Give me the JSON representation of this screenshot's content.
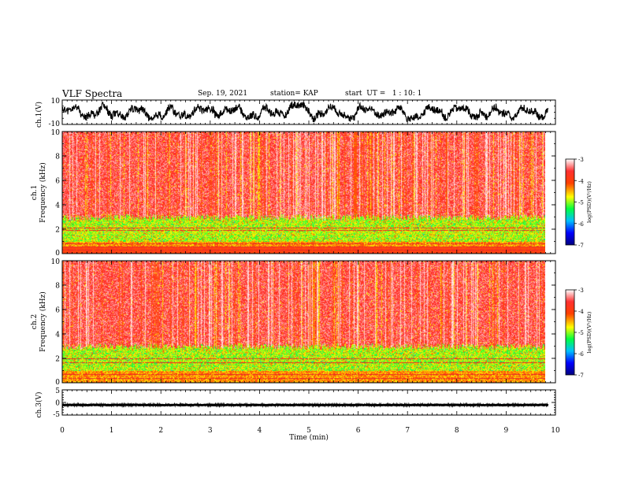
{
  "header": {
    "title": "VLF Spectra",
    "date": "Sep. 19, 2021",
    "station": "station= KAP",
    "start": "start  UT =   1 : 10: 1"
  },
  "colors": {
    "background": "#ffffff",
    "axis": "#000000",
    "waveform": "#000000",
    "colormap": [
      "#000080",
      "#0000ff",
      "#00c0ff",
      "#00ff40",
      "#ffff00",
      "#ff4000",
      "#ff3030",
      "#ffffff"
    ]
  },
  "chart_data": [
    {
      "type": "line",
      "name": "ch1-waveform",
      "ylabel": "ch.1(V)",
      "ylim": [
        -10,
        10
      ],
      "yticks": [
        10,
        -10
      ],
      "xlim": [
        0,
        10
      ],
      "trace": "noisy waveform oscillating roughly between -6 and 6 V"
    },
    {
      "type": "heatmap",
      "name": "ch1-spectrogram",
      "ylabel": "ch.1 Frequency (kHz)",
      "ylim": [
        0,
        10
      ],
      "yticks": [
        0,
        2,
        4,
        6,
        8,
        10
      ],
      "xlim": [
        0,
        9.85
      ],
      "colorbar": {
        "label": "log(PSD)(V²/Hz)",
        "range": [
          -7,
          -3
        ],
        "ticks": [
          -3,
          -4,
          -5,
          -6,
          -7
        ]
      },
      "description": "Red/white broadband from ~3 to 10 kHz; green/yellow band 1-3 kHz; red lines near 0.5-1 kHz"
    },
    {
      "type": "heatmap",
      "name": "ch2-spectrogram",
      "ylabel": "ch.2 Frequency (kHz)",
      "ylim": [
        0,
        10
      ],
      "yticks": [
        0,
        2,
        4,
        6,
        8,
        10
      ],
      "xlim": [
        0,
        9.85
      ],
      "colorbar": {
        "label": "log(PSD)(V²/Hz)",
        "range": [
          -7,
          -3
        ],
        "ticks": [
          -3,
          -4,
          -5,
          -6,
          -7
        ]
      },
      "description": "Red/white broadband from ~3 to 10 kHz; green/yellow band 0.5-3 kHz"
    },
    {
      "type": "line",
      "name": "ch3-waveform",
      "ylabel": "ch.3(V)",
      "ylim": [
        -5,
        5
      ],
      "yticks": [
        5,
        0,
        -5
      ],
      "xlim": [
        0,
        10
      ],
      "trace": "flat thick band near -1 V"
    }
  ],
  "x_axis": {
    "label": "Time (min)",
    "ticks": [
      "0",
      "1",
      "2",
      "3",
      "4",
      "5",
      "6",
      "7",
      "8",
      "9",
      "10"
    ],
    "range": [
      0,
      10
    ]
  }
}
